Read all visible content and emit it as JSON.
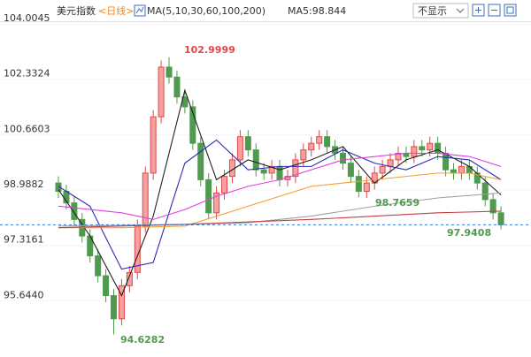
{
  "header": {
    "name": "美元指数",
    "period": "<日线>",
    "ma_legend": "MA(5,10,30,60,100,200)",
    "ma5_value": "MA5:98.844",
    "dropdown": "不显示"
  },
  "chart_data": {
    "type": "candlestick",
    "open": [
      99.2,
      98.95,
      98.6,
      98.1,
      97.6,
      97.0,
      96.4,
      95.8,
      95.1,
      96.1,
      96.5,
      97.9,
      99.5,
      101.2,
      102.7,
      102.4,
      101.8,
      101.5,
      100.4,
      99.3,
      98.3,
      98.9,
      99.4,
      99.9,
      100.6,
      100.2,
      99.6,
      99.5,
      99.7,
      99.3,
      99.4,
      99.9,
      100.2,
      100.4,
      100.6,
      100.3,
      100.1,
      99.8,
      99.4,
      98.95,
      99.2,
      99.5,
      99.7,
      99.9,
      100.1,
      100.0,
      100.3,
      100.2,
      100.4,
      100.1,
      99.6,
      99.5,
      99.7,
      99.5,
      99.2,
      98.7,
      98.3
    ],
    "high": [
      99.4,
      99.15,
      98.8,
      98.3,
      97.8,
      97.2,
      96.6,
      96.0,
      96.3,
      96.7,
      98.1,
      99.7,
      101.4,
      102.9,
      102.9999,
      102.6,
      102.0,
      101.7,
      100.6,
      99.5,
      99.1,
      99.6,
      100.1,
      100.8,
      100.8,
      100.4,
      99.8,
      99.9,
      99.9,
      99.6,
      100.1,
      100.4,
      100.6,
      100.8,
      100.8,
      100.5,
      100.3,
      100.0,
      99.6,
      99.4,
      99.7,
      99.9,
      100.1,
      100.3,
      100.3,
      100.5,
      100.5,
      100.6,
      100.6,
      100.3,
      99.8,
      99.9,
      99.9,
      99.7,
      99.4,
      98.9,
      98.5
    ],
    "low": [
      98.75,
      98.4,
      97.9,
      97.4,
      96.8,
      96.2,
      95.6,
      94.6282,
      94.9,
      95.9,
      96.3,
      97.7,
      99.3,
      101.0,
      102.2,
      101.6,
      101.3,
      100.2,
      99.1,
      98.1,
      98.1,
      98.7,
      99.2,
      99.7,
      100.0,
      99.4,
      99.3,
      99.3,
      99.1,
      99.1,
      99.2,
      99.7,
      100.0,
      100.2,
      100.1,
      99.9,
      99.6,
      99.2,
      98.7659,
      98.75,
      99.0,
      99.3,
      99.5,
      99.7,
      99.8,
      99.8,
      100.0,
      100.0,
      99.9,
      99.4,
      99.3,
      99.3,
      99.3,
      99.0,
      98.5,
      98.1,
      97.8
    ],
    "close": [
      98.95,
      98.6,
      98.1,
      97.6,
      97.0,
      96.4,
      95.8,
      95.1,
      96.1,
      96.5,
      97.9,
      99.5,
      101.2,
      102.7,
      102.4,
      101.8,
      101.5,
      100.4,
      99.3,
      98.3,
      98.9,
      99.4,
      99.9,
      100.6,
      100.2,
      99.6,
      99.5,
      99.7,
      99.3,
      99.4,
      99.9,
      100.2,
      100.4,
      100.6,
      100.3,
      100.1,
      99.8,
      99.4,
      98.95,
      99.2,
      99.5,
      99.7,
      99.9,
      100.1,
      100.0,
      100.3,
      100.2,
      100.4,
      100.1,
      99.6,
      99.5,
      99.7,
      99.5,
      99.2,
      98.7,
      98.3,
      97.9408
    ],
    "up_color": "#e04848",
    "down_color": "#4f9a4f",
    "series": [
      {
        "name": "MA5",
        "color": "#222222",
        "x": [
          0,
          4,
          8,
          12,
          16,
          20,
          24,
          28,
          32,
          36,
          40,
          44,
          48,
          52,
          56
        ],
        "values": [
          99.0,
          97.6,
          95.8,
          98.2,
          102.0,
          99.3,
          99.9,
          99.6,
          99.9,
          100.3,
          99.2,
          99.9,
          100.2,
          99.7,
          98.84
        ]
      },
      {
        "name": "MA10",
        "color": "#2a2ab8",
        "x": [
          0,
          4,
          8,
          12,
          16,
          20,
          24,
          28,
          32,
          36,
          40,
          44,
          48,
          52,
          56
        ],
        "values": [
          99.1,
          98.5,
          96.6,
          96.8,
          99.8,
          100.5,
          99.6,
          99.7,
          99.7,
          100.2,
          99.8,
          99.6,
          100.0,
          99.9,
          99.3
        ]
      },
      {
        "name": "MA30",
        "color": "#e040e0",
        "x": [
          0,
          8,
          12,
          16,
          20,
          24,
          28,
          32,
          36,
          40,
          44,
          48,
          52,
          56
        ],
        "values": [
          98.5,
          98.3,
          98.1,
          98.4,
          98.8,
          99.1,
          99.3,
          99.6,
          99.9,
          100.0,
          100.1,
          100.1,
          100.0,
          99.7
        ]
      },
      {
        "name": "MA60",
        "color": "#f0a030",
        "x": [
          0,
          8,
          16,
          20,
          24,
          28,
          32,
          40,
          48,
          52,
          56
        ],
        "values": [
          97.85,
          97.85,
          97.9,
          98.2,
          98.5,
          98.8,
          99.1,
          99.3,
          99.5,
          99.5,
          99.3
        ]
      },
      {
        "name": "MA100",
        "color": "#a0a0a0",
        "x": [
          0,
          16,
          24,
          32,
          40,
          48,
          56
        ],
        "values": [
          97.9,
          97.95,
          98.0,
          98.2,
          98.5,
          98.75,
          98.9
        ]
      },
      {
        "name": "MA200",
        "color": "#c04040",
        "x": [
          0,
          16,
          32,
          48,
          56
        ],
        "values": [
          97.85,
          97.95,
          98.1,
          98.3,
          98.35
        ]
      }
    ],
    "ylim": [
      94.16,
      104.3
    ],
    "yticks": [
      {
        "value": 95.644,
        "label": "95.6440"
      },
      97.3161,
      98.9882,
      100.6603,
      102.3324,
      104.0045
    ],
    "grid": true,
    "annotations": [
      {
        "text": "102.9999",
        "color": "#e04848"
      },
      {
        "text": "94.6282",
        "color": "#4f9a4f"
      },
      {
        "text": "98.7659",
        "color": "#4f9a4f"
      },
      {
        "text": "97.9408",
        "color": "#4f9a4f"
      }
    ],
    "last_line_color": "#3a78c8"
  }
}
